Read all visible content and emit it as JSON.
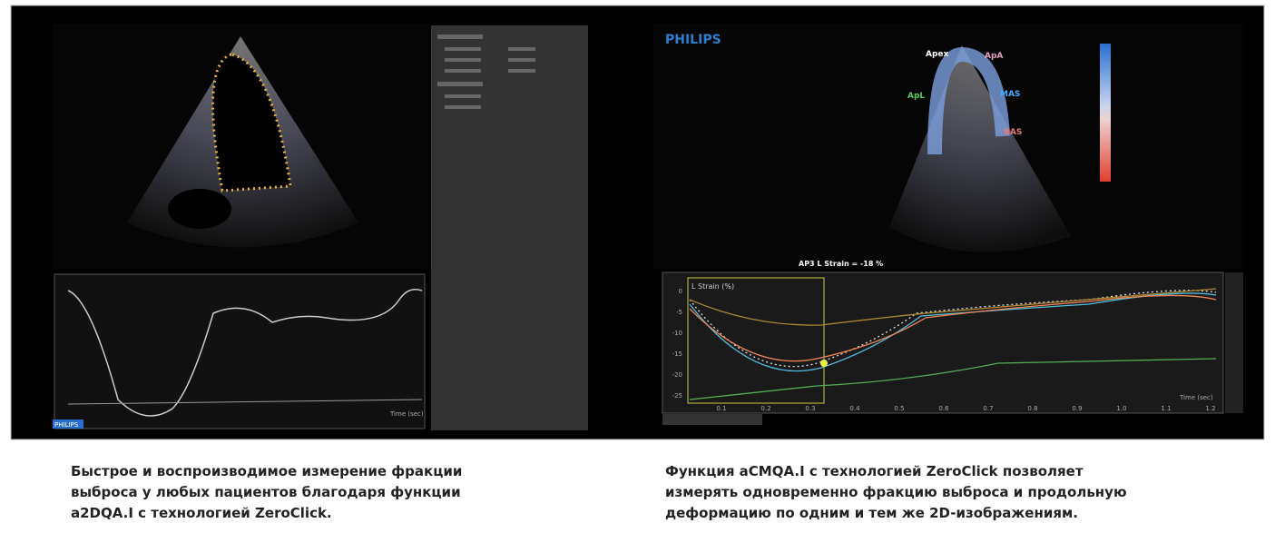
{
  "left_panel": {
    "brand": "PHILIPS",
    "graph_time_label": "Time (sec)"
  },
  "right_panel": {
    "brand": "PHILIPS",
    "segments": [
      "Apex",
      "ApA",
      "ApL",
      "MAS",
      "BAS"
    ],
    "strain_readout": "AP3 L Strain = -18 %",
    "graph_title": "L Strain (%)",
    "y_labels": [
      "0",
      "-5",
      "-10",
      "-15",
      "-20",
      "-25"
    ],
    "x_labels": [
      "0.1",
      "0.2",
      "0.3",
      "0.4",
      "0.5",
      "0.6",
      "0.7",
      "0.8",
      "0.9",
      "1.0",
      "1.1",
      "1.2"
    ],
    "time_label": "Time (sec)"
  },
  "captions": [
    [
      "Быстрое и воспроизводимое измерение фракции",
      "выброса у любых пациентов благодаря функции",
      "a2DQA.I с технологией ZeroClick."
    ],
    [
      "Функция aCMQA.I с технологией ZeroClick позволяет",
      "измерять одновременно фракцию выброса и продольную",
      "деформацию по одним и тем же 2D-изображениям."
    ]
  ]
}
